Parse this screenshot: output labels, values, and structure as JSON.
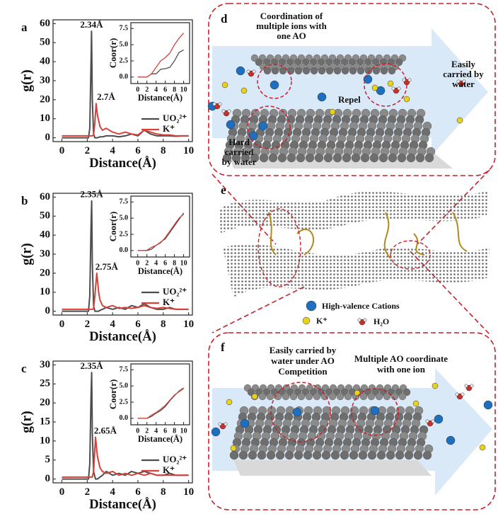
{
  "chart_data": [
    {
      "label": "a",
      "type": "line",
      "xlabel": "Distance(Å)",
      "ylabel": "g(r)",
      "xlim": [
        -0.7,
        10.3
      ],
      "ylim": [
        -2,
        62
      ],
      "xticks": [
        0,
        2,
        4,
        6,
        8,
        10
      ],
      "yticks": [
        0,
        10,
        20,
        30,
        40,
        50,
        60
      ],
      "legend": "lower right",
      "x": [
        0,
        1,
        2,
        2.1,
        2.2,
        2.3,
        2.34,
        2.4,
        2.5,
        2.6,
        2.7,
        2.8,
        3,
        3.2,
        3.5,
        4,
        4.5,
        5,
        5.5,
        6,
        6.5,
        7,
        7.5,
        8,
        8.5,
        9,
        9.5,
        10
      ],
      "series": [
        {
          "name": "UO₂²⁺",
          "color": "#4d4d4d",
          "values": [
            0,
            0,
            0,
            0,
            5,
            40,
            56,
            20,
            2,
            0,
            0,
            0,
            0.5,
            0.5,
            1,
            1,
            0.5,
            1,
            2,
            1,
            4,
            2,
            1,
            1,
            1,
            0.8,
            1,
            1
          ]
        },
        {
          "name": "K⁺",
          "color": "#d6423b",
          "values": [
            1,
            1,
            1,
            1,
            1,
            1,
            1,
            1,
            1.5,
            8,
            18,
            12,
            6,
            4,
            5,
            3,
            2,
            3,
            2,
            1.5,
            4,
            3,
            2,
            1.5,
            1.5,
            1,
            1,
            1
          ]
        }
      ],
      "annotations": [
        {
          "text": "2.34Å",
          "x": 2.34,
          "y": 56
        },
        {
          "text": "2.7Å",
          "x": 2.7,
          "y": 18
        }
      ],
      "inset": {
        "type": "line",
        "xlabel": "Distance(Å)",
        "ylabel": "Coor(r)",
        "xlim": [
          -1.5,
          11.3
        ],
        "ylim": [
          -1,
          8.4
        ],
        "xticks": [
          0,
          2,
          4,
          6,
          8,
          10
        ],
        "yticks": [
          {
            "value": 0,
            "label": "0.0"
          },
          {
            "value": 2.5,
            "label": "2.5"
          },
          {
            "value": 5,
            "label": "5.0"
          },
          {
            "value": 7.5,
            "label": "7.5"
          }
        ],
        "x": [
          0,
          1,
          2,
          3,
          4,
          5,
          6,
          7,
          8,
          9,
          10
        ],
        "series": [
          {
            "name": "UO₂²⁺",
            "color": "#4d4d4d",
            "values": [
              0,
              0,
              0,
              0.5,
              0.5,
              1.2,
              1.3,
              1.5,
              2.5,
              3.8,
              4.2
            ]
          },
          {
            "name": "K⁺",
            "color": "#d6423b",
            "values": [
              0,
              0,
              0,
              0.5,
              1.5,
              2.5,
              3,
              3.7,
              5,
              6,
              6.8
            ]
          }
        ]
      }
    },
    {
      "label": "b",
      "type": "line",
      "xlabel": "Distance(Å)",
      "ylabel": "g(r)",
      "xlim": [
        -0.7,
        10.3
      ],
      "ylim": [
        -2,
        62
      ],
      "xticks": [
        0,
        2,
        4,
        6,
        8,
        10
      ],
      "yticks": [
        0,
        10,
        20,
        30,
        40,
        50,
        60
      ],
      "legend": "lower right",
      "x": [
        0,
        1,
        2,
        2.1,
        2.2,
        2.3,
        2.35,
        2.4,
        2.5,
        2.6,
        2.75,
        2.9,
        3,
        3.2,
        3.5,
        4,
        4.5,
        5,
        5.5,
        6,
        6.5,
        7,
        7.5,
        8,
        8.5,
        9,
        9.5,
        10
      ],
      "series": [
        {
          "name": "UO₂²⁺",
          "color": "#4d4d4d",
          "values": [
            0,
            0,
            0,
            0,
            8,
            45,
            58,
            25,
            3,
            0,
            0,
            0,
            0.5,
            1,
            2,
            1,
            2,
            1,
            3,
            2,
            4,
            2,
            1,
            1,
            2,
            1,
            1,
            1
          ]
        },
        {
          "name": "K⁺",
          "color": "#d6423b",
          "values": [
            1,
            1,
            1,
            1,
            1,
            1,
            1,
            1,
            1.5,
            8,
            20,
            10,
            6,
            3,
            2,
            3,
            1.5,
            2,
            1.5,
            2,
            3,
            2,
            1.5,
            2,
            1.5,
            1,
            1,
            1
          ]
        }
      ],
      "annotations": [
        {
          "text": "2.35Å",
          "x": 2.35,
          "y": 58
        },
        {
          "text": "2.75Å",
          "x": 2.75,
          "y": 20
        }
      ],
      "inset": {
        "type": "line",
        "xlabel": "Distance(Å)",
        "ylabel": "Coor(r)",
        "xlim": [
          -1.5,
          11.3
        ],
        "ylim": [
          -1,
          8.4
        ],
        "xticks": [
          0,
          2,
          4,
          6,
          8,
          10
        ],
        "yticks": [
          {
            "value": 0,
            "label": "0.0"
          },
          {
            "value": 2.5,
            "label": "2.5"
          },
          {
            "value": 5,
            "label": "5.0"
          },
          {
            "value": 7.5,
            "label": "7.5"
          }
        ],
        "x": [
          0,
          1,
          2,
          3,
          4,
          5,
          6,
          7,
          8,
          9,
          10
        ],
        "series": [
          {
            "name": "UO₂²⁺",
            "color": "#4d4d4d",
            "values": [
              0,
              0,
              0,
              0.2,
              0.8,
              1.3,
              1.8,
              2.8,
              3.8,
              4.8,
              5.8
            ]
          },
          {
            "name": "K⁺",
            "color": "#d6423b",
            "values": [
              0,
              0,
              0.05,
              0.5,
              0.8,
              1.2,
              2,
              3,
              4,
              5,
              5.6
            ]
          }
        ]
      }
    },
    {
      "label": "c",
      "type": "line",
      "xlabel": "Distance(Å)",
      "ylabel": "g(r)",
      "xlim": [
        -0.7,
        10.3
      ],
      "ylim": [
        -1,
        31
      ],
      "xticks": [
        0,
        2,
        4,
        6,
        8,
        10
      ],
      "yticks": [
        0,
        5,
        10,
        15,
        20,
        25,
        30
      ],
      "legend": "lower right",
      "x": [
        0,
        1,
        2,
        2.1,
        2.2,
        2.3,
        2.35,
        2.4,
        2.5,
        2.65,
        2.8,
        3,
        3.2,
        3.5,
        4,
        4.5,
        5,
        5.5,
        6,
        6.5,
        7,
        7.5,
        8,
        8.5,
        9,
        9.5,
        10
      ],
      "series": [
        {
          "name": "UO₂²⁺",
          "color": "#4d4d4d",
          "values": [
            0,
            0,
            0,
            0,
            4,
            22,
            28,
            12,
            2,
            0,
            0,
            0.5,
            1,
            2,
            1,
            1.5,
            1,
            2,
            1.5,
            2,
            1.5,
            1,
            1,
            1.5,
            1,
            1,
            1
          ]
        },
        {
          "name": "K⁺",
          "color": "#d6423b",
          "values": [
            0.5,
            0.5,
            0.5,
            0.5,
            0.5,
            0.5,
            0.5,
            0.5,
            2,
            11,
            6,
            3,
            2,
            1.5,
            2,
            1,
            1.5,
            1,
            1.5,
            1,
            1.5,
            1,
            1,
            1,
            1,
            1,
            1
          ]
        }
      ],
      "annotations": [
        {
          "text": "2.35Å",
          "x": 2.35,
          "y": 28
        },
        {
          "text": "2.65Å",
          "x": 2.65,
          "y": 11
        }
      ],
      "inset": {
        "type": "line",
        "xlabel": "Distance(Å)",
        "ylabel": "Coor(r)",
        "xlim": [
          -1.5,
          11.3
        ],
        "ylim": [
          -1,
          8.4
        ],
        "xticks": [
          0,
          2,
          4,
          6,
          8,
          10
        ],
        "yticks": [
          {
            "value": 0,
            "label": "0.0"
          },
          {
            "value": 2.5,
            "label": "2.5"
          },
          {
            "value": 5,
            "label": "5.0"
          },
          {
            "value": 7.5,
            "label": "7.5"
          }
        ],
        "x": [
          0,
          1,
          2,
          3,
          4,
          5,
          6,
          7,
          8,
          9,
          10
        ],
        "series": [
          {
            "name": "UO₂²⁺",
            "color": "#4d4d4d",
            "values": [
              0,
              0,
              0,
              0.3,
              0.8,
              1.2,
              1.8,
              2.7,
              3.5,
              4.2,
              4.7
            ]
          },
          {
            "name": "K⁺",
            "color": "#d6423b",
            "values": [
              0,
              0,
              0,
              0.5,
              0.9,
              1.4,
              2,
              2.8,
              3.6,
              4.1,
              4.6
            ]
          }
        ]
      }
    }
  ],
  "diagram": {
    "d": {
      "label": "d",
      "title": [
        "Coordination of",
        "multiple ions with",
        "one AO"
      ],
      "right_note": [
        "Easily",
        "carried by",
        "water"
      ],
      "repel": "Repel",
      "left_note": [
        "Hard",
        "carried",
        "by water"
      ]
    },
    "e": {
      "label": "e",
      "legend": [
        "High-valence Cations",
        "K⁺",
        "H₂O"
      ]
    },
    "f": {
      "label": "f",
      "left_note": [
        "Easily carried by",
        "water under AO",
        "Competition"
      ],
      "right_note": [
        "Multiple AO coordinate",
        "with one ion"
      ]
    }
  }
}
